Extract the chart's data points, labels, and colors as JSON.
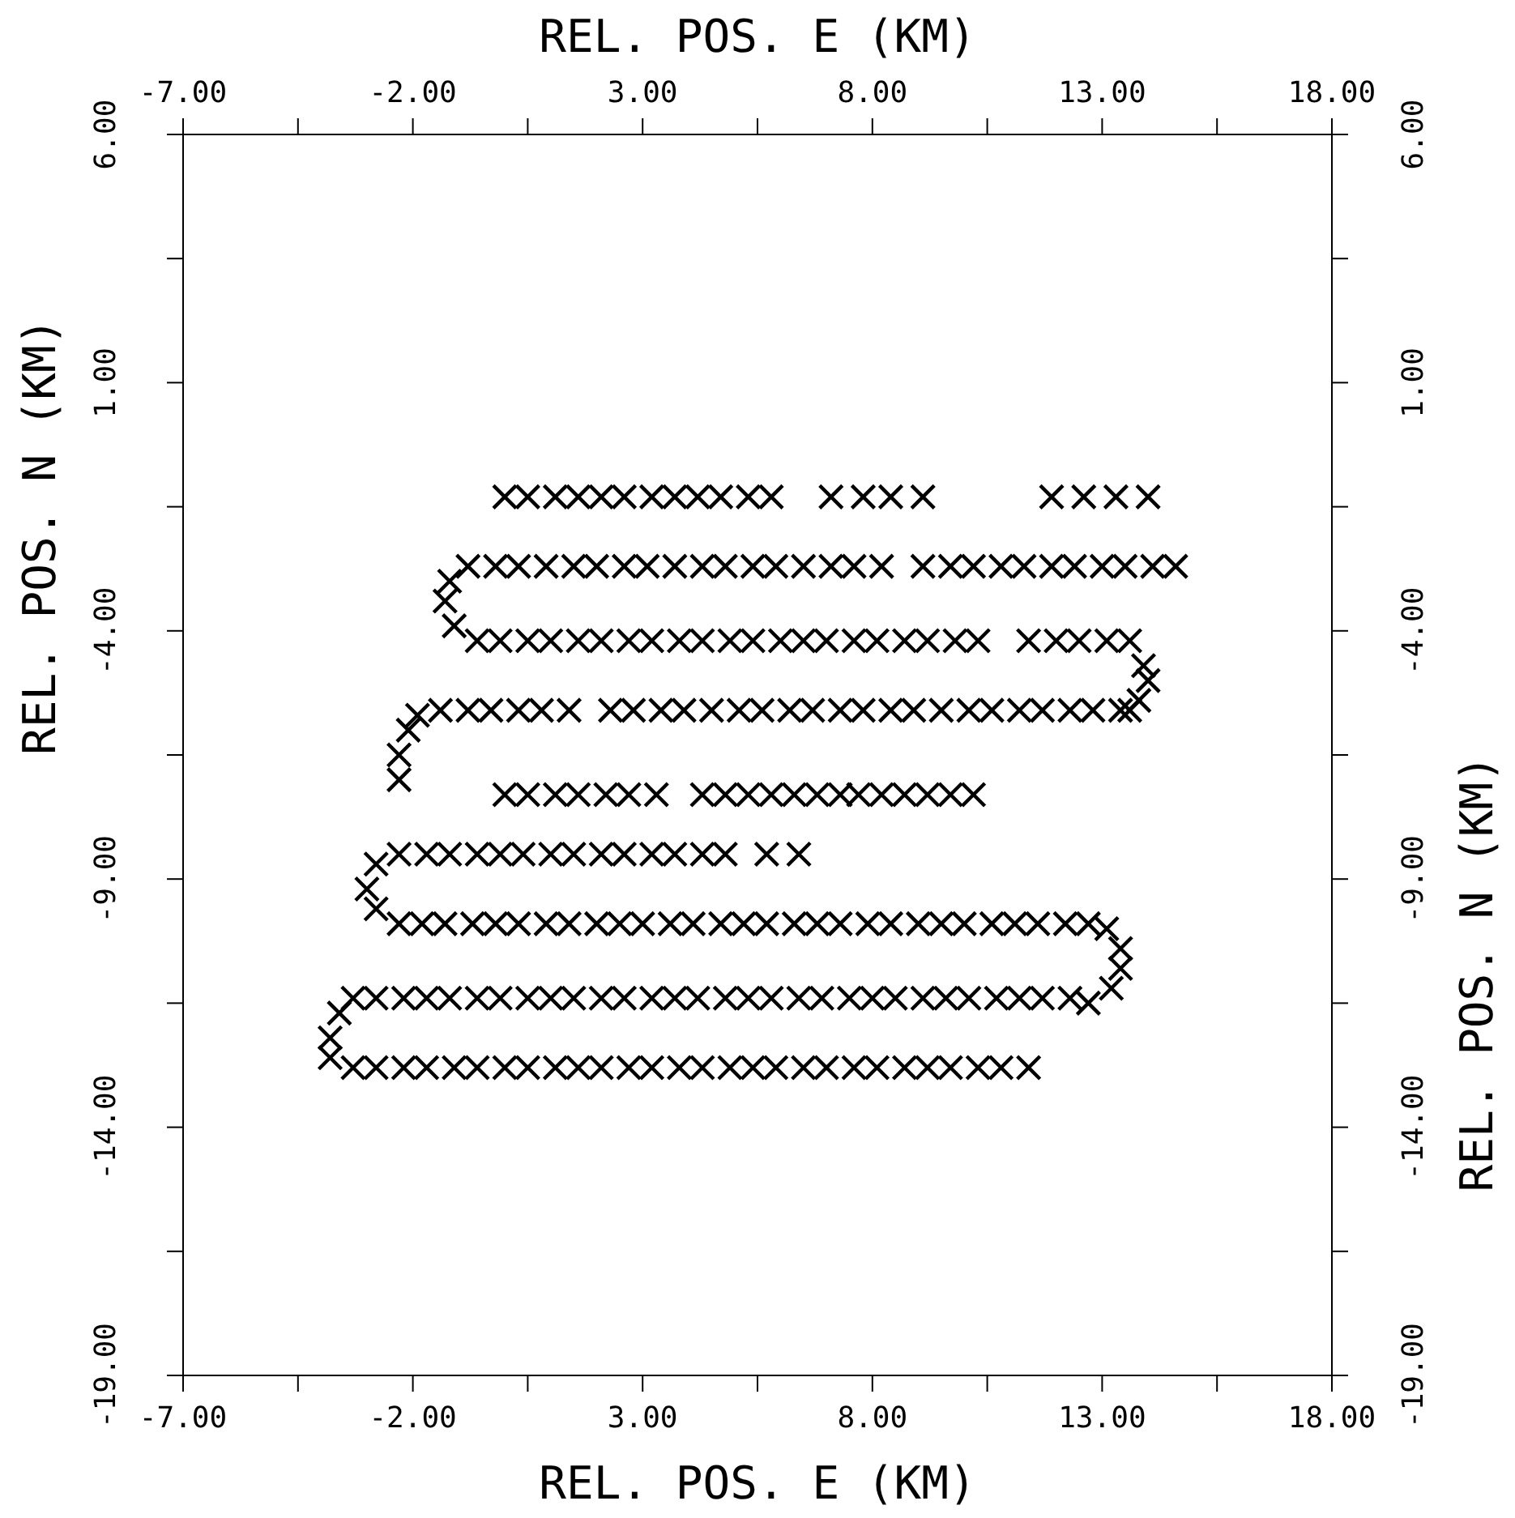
{
  "chart_data": {
    "type": "scatter",
    "xlabel": "REL. POS. E (KM)",
    "x2label": "REL. POS. E (KM)",
    "ylabel": "REL. POS. N (KM)",
    "y2label": "REL. POS. N (KM)",
    "xlim": [
      -7,
      18
    ],
    "x2lim": [
      -7,
      18
    ],
    "ylim": [
      -19,
      6
    ],
    "y2lim": [
      -19,
      6
    ],
    "xticks": [
      {
        "value": -7,
        "label": "-7.00"
      },
      {
        "value": -4.5,
        "label": null
      },
      {
        "value": -2,
        "label": "-2.00"
      },
      {
        "value": 0.5,
        "label": null
      },
      {
        "value": 3,
        "label": "3.00"
      },
      {
        "value": 5.5,
        "label": null
      },
      {
        "value": 8,
        "label": "8.00"
      },
      {
        "value": 10.5,
        "label": null
      },
      {
        "value": 13,
        "label": "13.00"
      },
      {
        "value": 15.5,
        "label": null
      },
      {
        "value": 18,
        "label": "18.00"
      }
    ],
    "x2ticks": [
      {
        "value": -7,
        "label": "-7.00"
      },
      {
        "value": -4.5,
        "label": null
      },
      {
        "value": -2,
        "label": "-2.00"
      },
      {
        "value": 0.5,
        "label": null
      },
      {
        "value": 3,
        "label": "3.00"
      },
      {
        "value": 5.5,
        "label": null
      },
      {
        "value": 8,
        "label": "8.00"
      },
      {
        "value": 10.5,
        "label": null
      },
      {
        "value": 13,
        "label": "13.00"
      },
      {
        "value": 15.5,
        "label": null
      },
      {
        "value": 18,
        "label": "18.00"
      }
    ],
    "yticks": [
      {
        "value": -19,
        "label": "-19.00"
      },
      {
        "value": -16.5,
        "label": null
      },
      {
        "value": -14,
        "label": "-14.00"
      },
      {
        "value": -11.5,
        "label": null
      },
      {
        "value": -9,
        "label": "-9.00"
      },
      {
        "value": -6.5,
        "label": null
      },
      {
        "value": -4,
        "label": "-4.00"
      },
      {
        "value": -1.5,
        "label": null
      },
      {
        "value": 1,
        "label": "1.00"
      },
      {
        "value": 3.5,
        "label": null
      },
      {
        "value": 6,
        "label": "6.00"
      }
    ],
    "y2ticks": [
      {
        "value": -19,
        "label": "-19.00"
      },
      {
        "value": -16.5,
        "label": null
      },
      {
        "value": -14,
        "label": "-14.00"
      },
      {
        "value": -11.5,
        "label": null
      },
      {
        "value": -9,
        "label": "-9.00"
      },
      {
        "value": -6.5,
        "label": null
      },
      {
        "value": -4,
        "label": "-4.00"
      },
      {
        "value": -1.5,
        "label": null
      },
      {
        "value": 1,
        "label": "1.00"
      },
      {
        "value": 3.5,
        "label": null
      },
      {
        "value": 6,
        "label": "6.00"
      }
    ],
    "marker": "cross",
    "series": [
      {
        "color": "#000000",
        "x": [
          0.0,
          0.5,
          1.1,
          1.6,
          2.1,
          2.6,
          3.2,
          3.7,
          4.2,
          4.7,
          5.3,
          5.8,
          7.1,
          7.8,
          8.4,
          9.1,
          11.9,
          12.6,
          13.3,
          14.0
        ],
        "values": [
          -1.3,
          -1.3,
          -1.3,
          -1.3,
          -1.3,
          -1.3,
          -1.3,
          -1.3,
          -1.3,
          -1.3,
          -1.3,
          -1.3,
          -1.3,
          -1.3,
          -1.3,
          -1.3,
          -1.3,
          -1.3,
          -1.3,
          -1.3
        ]
      },
      {
        "color": "#000000",
        "x": [
          -0.8,
          -0.2,
          0.3,
          0.9,
          1.5,
          2.0,
          2.6,
          3.1,
          3.7,
          4.3,
          4.8,
          5.4,
          5.9,
          6.5,
          7.1,
          7.6,
          8.2,
          9.1,
          9.7,
          10.2,
          10.8,
          11.3,
          11.9,
          12.4,
          13.0,
          13.5,
          14.1,
          14.6,
          -1.2,
          -1.3,
          -1.1
        ],
        "values": [
          -2.7,
          -2.7,
          -2.7,
          -2.7,
          -2.7,
          -2.7,
          -2.7,
          -2.7,
          -2.7,
          -2.7,
          -2.7,
          -2.7,
          -2.7,
          -2.7,
          -2.7,
          -2.7,
          -2.7,
          -2.7,
          -2.7,
          -2.7,
          -2.7,
          -2.7,
          -2.7,
          -2.7,
          -2.7,
          -2.7,
          -2.7,
          -2.7,
          -3.0,
          -3.4,
          -3.9
        ]
      },
      {
        "color": "#000000",
        "x": [
          -0.6,
          -0.1,
          0.5,
          1.0,
          1.6,
          2.1,
          2.7,
          3.2,
          3.8,
          4.3,
          4.9,
          5.4,
          6.0,
          6.5,
          7.0,
          7.6,
          8.1,
          8.7,
          9.2,
          9.8,
          10.3,
          11.4,
          12.0,
          12.5,
          13.1,
          13.6,
          13.9,
          14.0,
          13.8,
          13.6
        ],
        "values": [
          -4.2,
          -4.2,
          -4.2,
          -4.2,
          -4.2,
          -4.2,
          -4.2,
          -4.2,
          -4.2,
          -4.2,
          -4.2,
          -4.2,
          -4.2,
          -4.2,
          -4.2,
          -4.2,
          -4.2,
          -4.2,
          -4.2,
          -4.2,
          -4.2,
          -4.2,
          -4.2,
          -4.2,
          -4.2,
          -4.2,
          -4.7,
          -5.0,
          -5.4,
          -5.6
        ]
      },
      {
        "color": "#000000",
        "x": [
          2.3,
          2.8,
          3.4,
          3.9,
          4.5,
          5.1,
          5.6,
          6.2,
          6.7,
          7.3,
          7.8,
          8.4,
          8.9,
          9.5,
          10.1,
          10.6,
          11.2,
          11.7,
          12.3,
          12.8,
          13.4,
          -1.4,
          -0.8,
          -0.3,
          0.3,
          0.8,
          1.4,
          -1.9,
          -2.1,
          -2.3,
          -2.3
        ],
        "values": [
          -5.6,
          -5.6,
          -5.6,
          -5.6,
          -5.6,
          -5.6,
          -5.6,
          -5.6,
          -5.6,
          -5.6,
          -5.6,
          -5.6,
          -5.6,
          -5.6,
          -5.6,
          -5.6,
          -5.6,
          -5.6,
          -5.6,
          -5.6,
          -5.6,
          -5.6,
          -5.6,
          -5.6,
          -5.6,
          -5.6,
          -5.6,
          -5.7,
          -6.0,
          -6.5,
          -7.0
        ]
      },
      {
        "color": "#000000",
        "x": [
          0.0,
          0.5,
          1.1,
          1.6,
          2.2,
          2.7,
          3.3,
          4.3,
          4.8,
          5.3,
          5.8,
          6.3,
          6.8,
          7.3,
          7.7,
          8.2,
          8.7,
          9.2,
          9.7,
          10.2
        ],
        "values": [
          -7.3,
          -7.3,
          -7.3,
          -7.3,
          -7.3,
          -7.3,
          -7.3,
          -7.3,
          -7.3,
          -7.3,
          -7.3,
          -7.3,
          -7.3,
          -7.3,
          -7.3,
          -7.3,
          -7.3,
          -7.3,
          -7.3,
          -7.3
        ]
      },
      {
        "color": "#000000",
        "x": [
          -2.3,
          -1.7,
          -1.2,
          -0.6,
          -0.1,
          0.4,
          1.0,
          1.5,
          2.1,
          2.6,
          3.2,
          3.7,
          4.3,
          4.8,
          5.7,
          6.4,
          -2.8,
          -3.0,
          -2.8
        ],
        "values": [
          -8.5,
          -8.5,
          -8.5,
          -8.5,
          -8.5,
          -8.5,
          -8.5,
          -8.5,
          -8.5,
          -8.5,
          -8.5,
          -8.5,
          -8.5,
          -8.5,
          -8.5,
          -8.5,
          -8.7,
          -9.2,
          -9.6
        ]
      },
      {
        "color": "#000000",
        "x": [
          -2.3,
          -1.8,
          -1.3,
          -0.7,
          -0.2,
          0.3,
          0.9,
          1.4,
          2.0,
          2.5,
          3.0,
          3.6,
          4.1,
          4.7,
          5.2,
          5.7,
          6.3,
          6.8,
          7.3,
          7.9,
          8.4,
          9.0,
          9.5,
          10.0,
          10.6,
          11.1,
          11.6,
          12.2,
          12.7,
          13.1,
          13.4,
          13.4,
          13.2,
          12.7
        ],
        "values": [
          -9.9,
          -9.9,
          -9.9,
          -9.9,
          -9.9,
          -9.9,
          -9.9,
          -9.9,
          -9.9,
          -9.9,
          -9.9,
          -9.9,
          -9.9,
          -9.9,
          -9.9,
          -9.9,
          -9.9,
          -9.9,
          -9.9,
          -9.9,
          -9.9,
          -9.9,
          -9.9,
          -9.9,
          -9.9,
          -9.9,
          -9.9,
          -9.9,
          -9.9,
          -10.0,
          -10.4,
          -10.8,
          -11.2,
          -11.5
        ]
      },
      {
        "color": "#000000",
        "x": [
          -3.3,
          -2.8,
          -2.2,
          -1.7,
          -1.2,
          -0.6,
          -0.1,
          0.5,
          1.0,
          1.5,
          2.1,
          2.6,
          3.2,
          3.7,
          4.2,
          4.8,
          5.3,
          5.8,
          6.4,
          6.9,
          7.5,
          8.0,
          8.5,
          9.1,
          9.6,
          10.1,
          10.7,
          11.2,
          11.7,
          12.3,
          -3.6,
          -3.8,
          -3.8
        ],
        "values": [
          -11.4,
          -11.4,
          -11.4,
          -11.4,
          -11.4,
          -11.4,
          -11.4,
          -11.4,
          -11.4,
          -11.4,
          -11.4,
          -11.4,
          -11.4,
          -11.4,
          -11.4,
          -11.4,
          -11.4,
          -11.4,
          -11.4,
          -11.4,
          -11.4,
          -11.4,
          -11.4,
          -11.4,
          -11.4,
          -11.4,
          -11.4,
          -11.4,
          -11.4,
          -11.4,
          -11.7,
          -12.2,
          -12.6
        ]
      },
      {
        "color": "#000000",
        "x": [
          -3.3,
          -2.8,
          -2.2,
          -1.7,
          -1.1,
          -0.6,
          0.0,
          0.5,
          1.1,
          1.6,
          2.1,
          2.7,
          3.2,
          3.8,
          4.3,
          4.9,
          5.4,
          5.9,
          6.5,
          7.0,
          7.6,
          8.1,
          8.7,
          9.2,
          9.7,
          10.3,
          10.8,
          11.4
        ],
        "values": [
          -12.8,
          -12.8,
          -12.8,
          -12.8,
          -12.8,
          -12.8,
          -12.8,
          -12.8,
          -12.8,
          -12.8,
          -12.8,
          -12.8,
          -12.8,
          -12.8,
          -12.8,
          -12.8,
          -12.8,
          -12.8,
          -12.8,
          -12.8,
          -12.8,
          -12.8,
          -12.8,
          -12.8,
          -12.8,
          -12.8,
          -12.8,
          -12.8
        ]
      }
    ]
  }
}
